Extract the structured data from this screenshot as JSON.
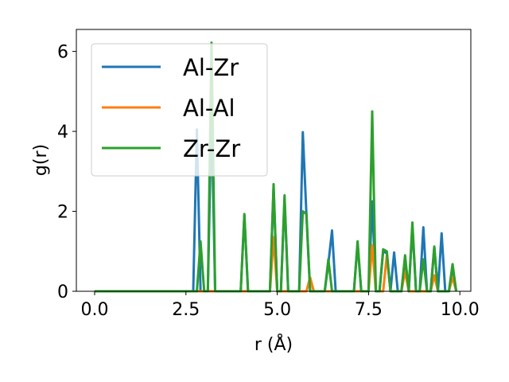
{
  "chart_data": {
    "type": "line",
    "title": "",
    "xlabel": "r (Å)",
    "ylabel": "g(r)",
    "xlim": [
      -0.5,
      10.3
    ],
    "ylim": [
      0,
      6.55
    ],
    "xticks": [
      0.0,
      2.5,
      5.0,
      7.5,
      10.0
    ],
    "xtick_labels": [
      "0.0",
      "2.5",
      "5.0",
      "7.5",
      "10.0"
    ],
    "yticks": [
      0,
      2,
      4,
      6
    ],
    "ytick_labels": [
      "0",
      "2",
      "4",
      "6"
    ],
    "grid": false,
    "legend_position": "top-left",
    "series": [
      {
        "name": "Al-Zr",
        "color": "#1f77b4",
        "x": [
          0.0,
          2.7,
          2.8,
          2.9,
          3.1,
          3.2,
          3.3,
          4.0,
          4.1,
          4.2,
          4.8,
          4.9,
          5.0,
          5.1,
          5.2,
          5.3,
          5.6,
          5.7,
          5.8,
          5.9,
          6.0,
          6.3,
          6.4,
          6.5,
          6.6,
          7.1,
          7.2,
          7.3,
          7.5,
          7.6,
          7.7,
          7.8,
          7.9,
          8.0,
          8.1,
          8.2,
          8.3,
          8.4,
          8.5,
          8.6,
          8.7,
          8.8,
          8.9,
          9.0,
          9.1,
          9.2,
          9.3,
          9.4,
          9.5,
          9.6,
          9.7,
          9.8,
          9.9
        ],
        "y": [
          0,
          0,
          4.05,
          0,
          0,
          4.5,
          0,
          0,
          1.9,
          0,
          0,
          2.6,
          0,
          0,
          2.3,
          0,
          0,
          3.98,
          1.9,
          0,
          0,
          0,
          0.7,
          1.52,
          0,
          0,
          1.2,
          0,
          0,
          2.25,
          0,
          0,
          1.0,
          0.95,
          0,
          0.97,
          0,
          0,
          0.8,
          0,
          1.6,
          0,
          0,
          1.6,
          0,
          0,
          1.1,
          0,
          1.45,
          0,
          0,
          0.6,
          0
        ]
      },
      {
        "name": "Al-Al",
        "color": "#ff7f0e",
        "x": [
          0.0,
          4.8,
          4.9,
          5.0,
          5.8,
          5.9,
          6.0,
          7.5,
          7.6,
          7.7,
          7.9,
          8.0,
          8.1,
          8.4,
          8.5,
          8.6,
          9.2,
          9.3,
          9.4,
          9.7,
          9.8,
          9.9
        ],
        "y": [
          0,
          0,
          1.35,
          0,
          0,
          0.35,
          0,
          0,
          1.15,
          0,
          0,
          0.9,
          0,
          0,
          0.5,
          0,
          0,
          0.4,
          0,
          0,
          0.35,
          0
        ]
      },
      {
        "name": "Zr-Zr",
        "color": "#2ca02c",
        "x": [
          0.0,
          2.8,
          2.9,
          3.0,
          3.1,
          3.2,
          3.3,
          4.0,
          4.1,
          4.2,
          4.8,
          4.9,
          5.0,
          5.1,
          5.2,
          5.3,
          5.6,
          5.7,
          5.8,
          5.9,
          6.3,
          6.4,
          6.5,
          7.1,
          7.2,
          7.3,
          7.5,
          7.6,
          7.7,
          7.8,
          7.9,
          8.0,
          8.1,
          8.4,
          8.5,
          8.6,
          8.7,
          8.8,
          8.9,
          9.0,
          9.1,
          9.2,
          9.3,
          9.4,
          9.7,
          9.8,
          9.9
        ],
        "y": [
          0,
          0,
          1.25,
          0,
          0,
          6.22,
          0,
          0,
          1.93,
          0,
          0,
          2.68,
          0,
          0,
          2.4,
          0,
          0,
          2.0,
          1.93,
          0,
          0,
          0.8,
          0,
          0,
          1.25,
          0,
          0,
          4.5,
          0,
          0,
          1.05,
          1.0,
          0,
          0,
          0.9,
          0,
          1.72,
          0,
          0,
          0.8,
          0,
          0,
          1.12,
          0,
          0,
          0.68,
          0
        ]
      }
    ]
  }
}
